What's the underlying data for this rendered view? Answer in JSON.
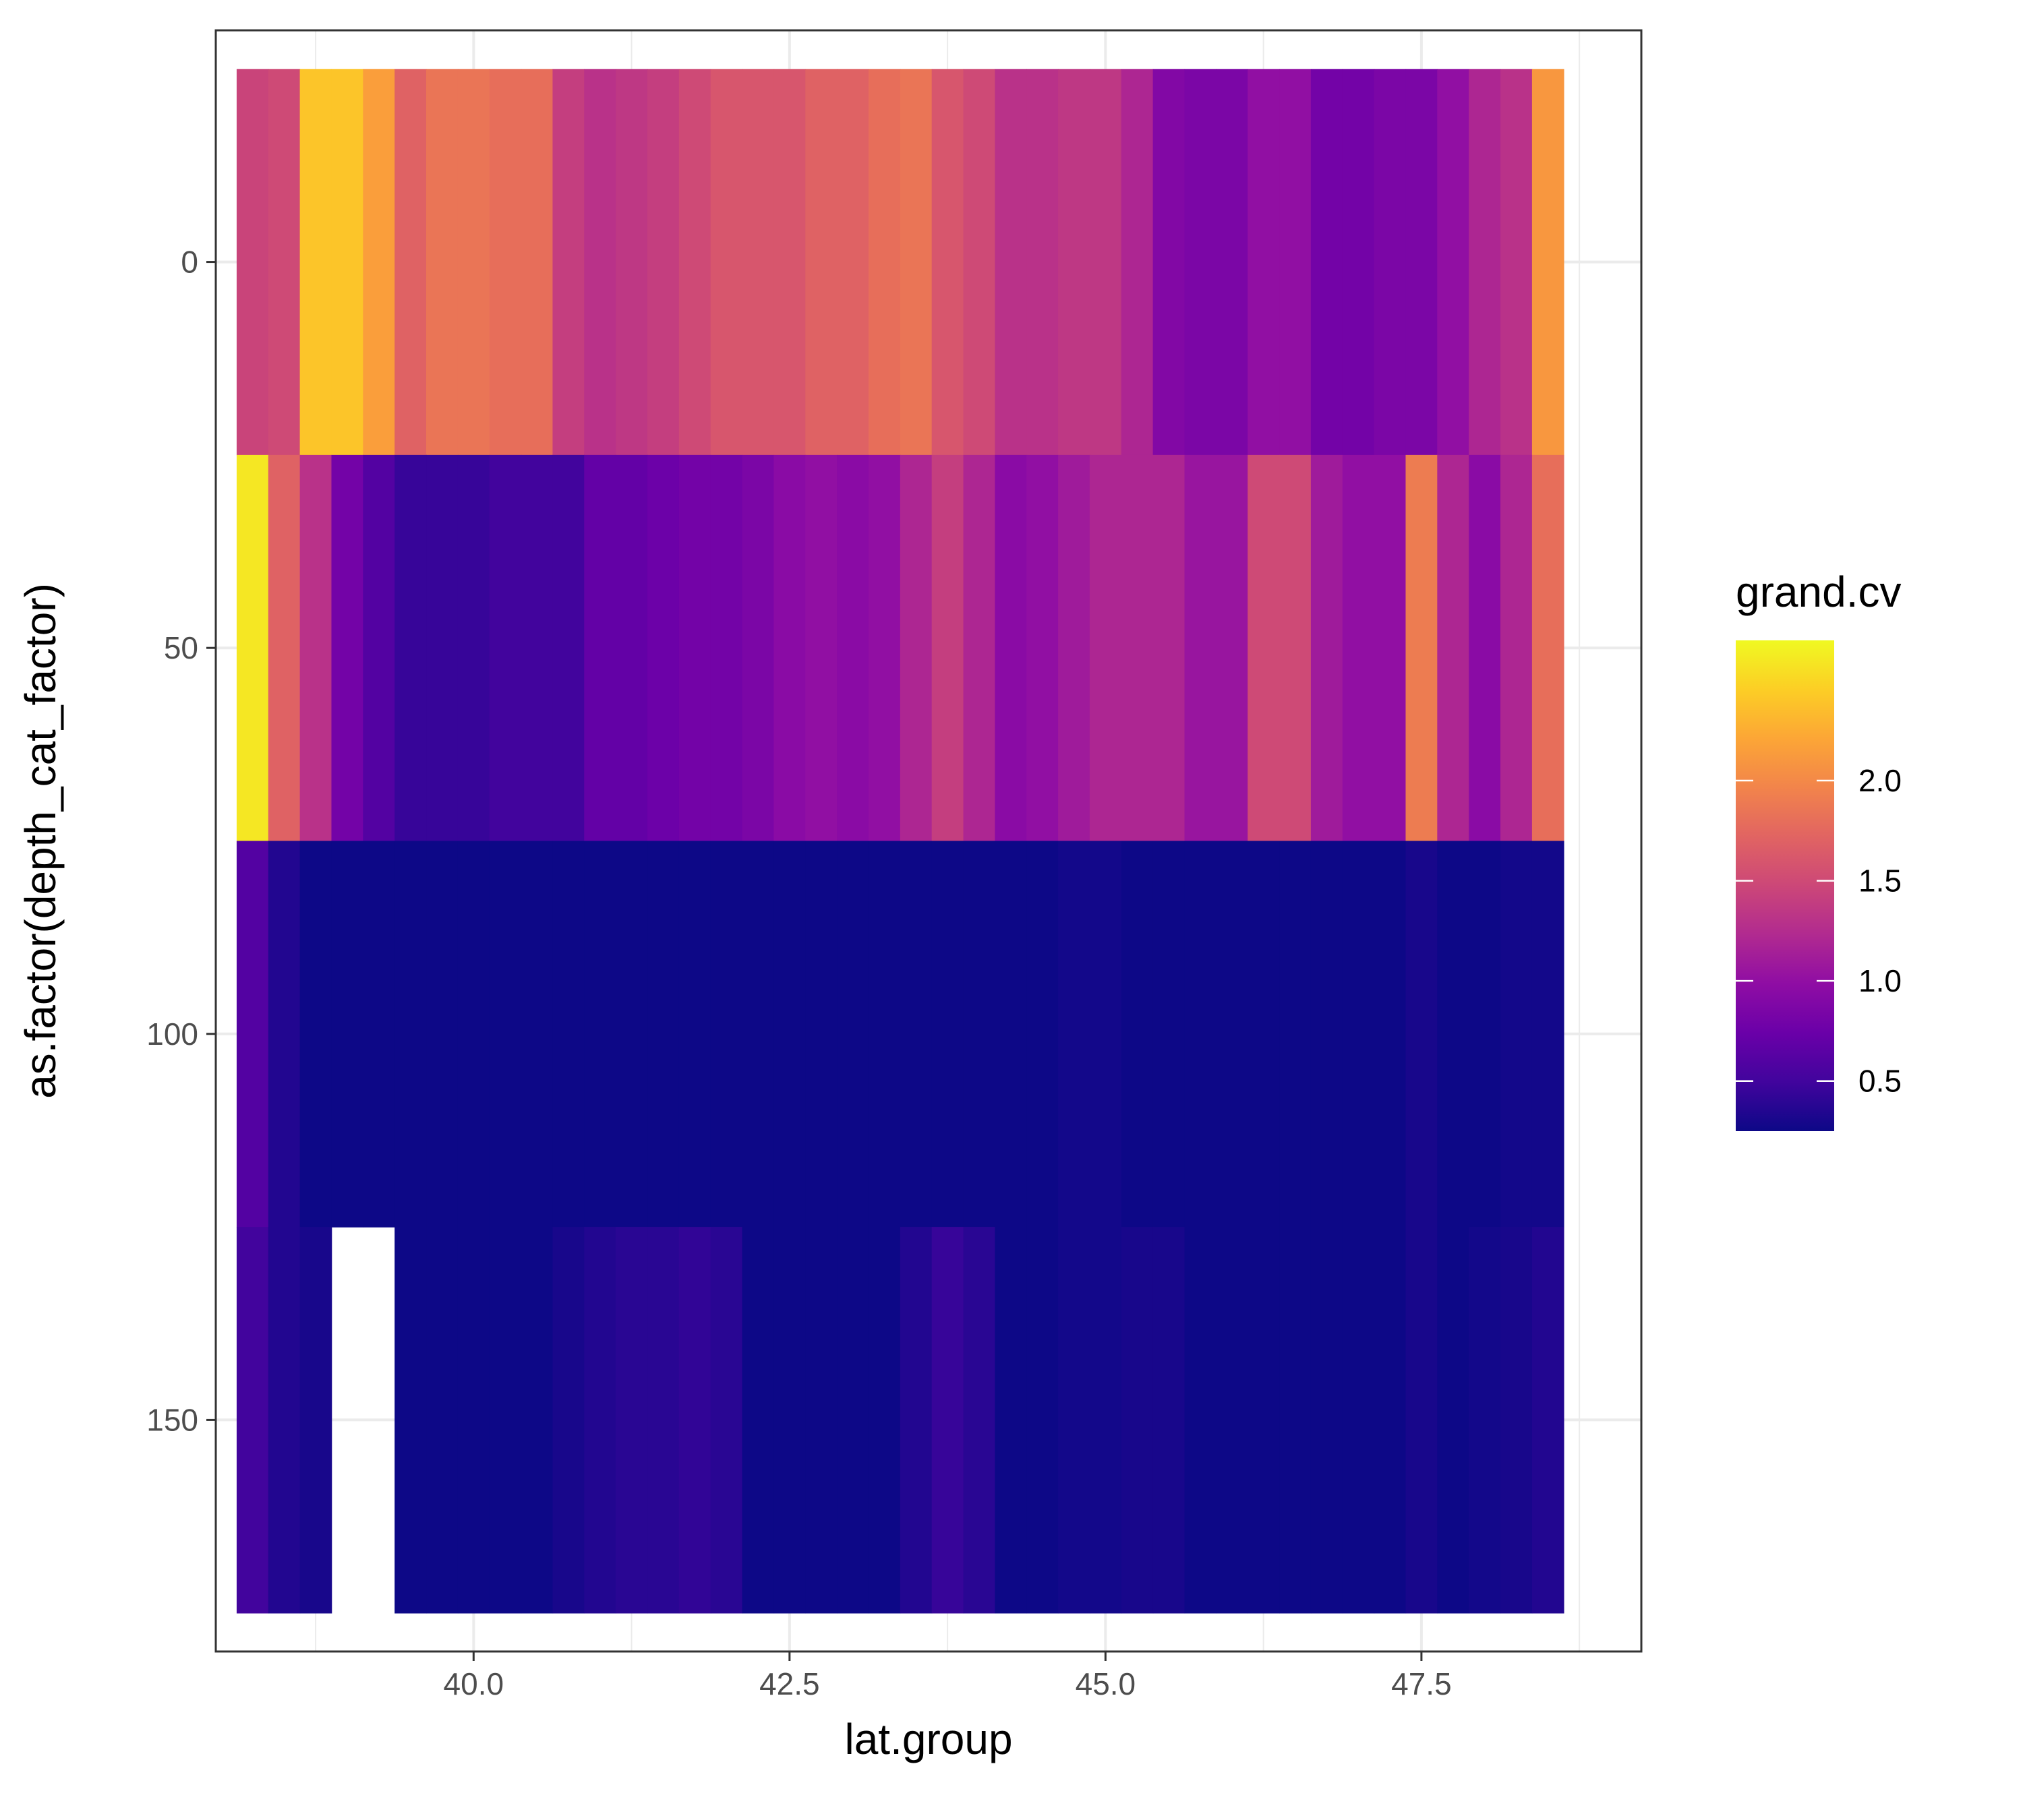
{
  "chart_data": {
    "type": "heatmap",
    "xlabel": "lat.group",
    "ylabel": "as.factor(depth_cat_factor)",
    "x_ticks": [
      40.0,
      42.5,
      45.0,
      47.5
    ],
    "x_tick_labels": [
      "40.0",
      "42.5",
      "45.0",
      "47.5"
    ],
    "y_ticks": [
      0,
      50,
      100,
      150
    ],
    "y_tick_labels": [
      "0",
      "50",
      "100",
      "150"
    ],
    "xlim": [
      37.96,
      49.24
    ],
    "ylim": [
      -30,
      180
    ],
    "y_reversed": true,
    "grid": true,
    "x": [
      38.25,
      38.5,
      38.75,
      39.0,
      39.25,
      39.5,
      39.75,
      40.0,
      40.25,
      40.5,
      40.75,
      41.0,
      41.25,
      41.5,
      41.75,
      42.0,
      42.25,
      42.5,
      42.75,
      43.0,
      43.25,
      43.5,
      43.75,
      44.0,
      44.25,
      44.5,
      44.75,
      45.0,
      45.25,
      45.5,
      45.75,
      46.0,
      46.25,
      46.5,
      46.75,
      47.0,
      47.25,
      47.5,
      47.75,
      48.0,
      48.25,
      48.5
    ],
    "y": [
      0,
      50,
      100,
      150
    ],
    "row_extent": [
      [
        -25,
        25
      ],
      [
        25,
        75
      ],
      [
        75,
        125
      ],
      [
        125,
        175
      ]
    ],
    "values": [
      [
        1.45,
        1.5,
        2.4,
        2.4,
        2.15,
        1.7,
        1.85,
        1.85,
        1.8,
        1.8,
        1.4,
        1.3,
        1.35,
        1.4,
        1.5,
        1.6,
        1.6,
        1.6,
        1.7,
        1.7,
        1.8,
        1.85,
        1.6,
        1.5,
        1.3,
        1.3,
        1.35,
        1.35,
        1.2,
        0.9,
        0.85,
        0.85,
        1.0,
        1.0,
        0.8,
        0.8,
        0.85,
        0.85,
        1.0,
        1.2,
        1.3,
        2.1
      ],
      [
        2.6,
        1.7,
        1.3,
        0.8,
        0.6,
        0.45,
        0.45,
        0.45,
        0.5,
        0.5,
        0.5,
        0.7,
        0.7,
        0.75,
        0.8,
        0.8,
        0.85,
        0.95,
        1.0,
        0.95,
        1.0,
        1.2,
        1.4,
        1.2,
        0.95,
        1.0,
        1.1,
        1.2,
        1.2,
        1.2,
        1.05,
        1.05,
        1.5,
        1.5,
        1.1,
        1.0,
        1.0,
        1.9,
        1.2,
        0.95,
        1.2,
        1.8
      ],
      [
        0.6,
        0.35,
        0.25,
        0.22,
        0.22,
        0.2,
        0.2,
        0.2,
        0.2,
        0.22,
        0.22,
        0.25,
        0.25,
        0.25,
        0.25,
        0.2,
        0.2,
        0.18,
        0.18,
        0.2,
        0.2,
        0.25,
        0.25,
        0.22,
        0.2,
        0.2,
        0.28,
        0.28,
        0.25,
        0.25,
        0.22,
        0.22,
        0.25,
        0.25,
        0.22,
        0.22,
        0.22,
        0.3,
        0.25,
        0.25,
        0.28,
        0.28
      ],
      [
        0.5,
        0.35,
        0.3,
        null,
        null,
        0.25,
        0.25,
        0.2,
        0.2,
        0.22,
        0.3,
        0.35,
        0.38,
        0.38,
        0.42,
        0.38,
        0.25,
        0.2,
        0.2,
        0.22,
        0.22,
        0.35,
        0.45,
        0.38,
        0.22,
        0.22,
        0.28,
        0.28,
        0.3,
        0.3,
        0.25,
        0.25,
        0.22,
        0.22,
        0.22,
        0.25,
        0.25,
        0.3,
        0.25,
        0.28,
        0.3,
        0.35
      ]
    ],
    "colorscale": "plasma",
    "colorbar": {
      "title": "grand.cv",
      "min": 0.25,
      "max": 2.7,
      "ticks": [
        0.5,
        1.0,
        1.5,
        2.0
      ],
      "tick_labels": [
        "0.5",
        "1.0",
        "1.5",
        "2.0"
      ]
    },
    "legend_position": "right"
  }
}
